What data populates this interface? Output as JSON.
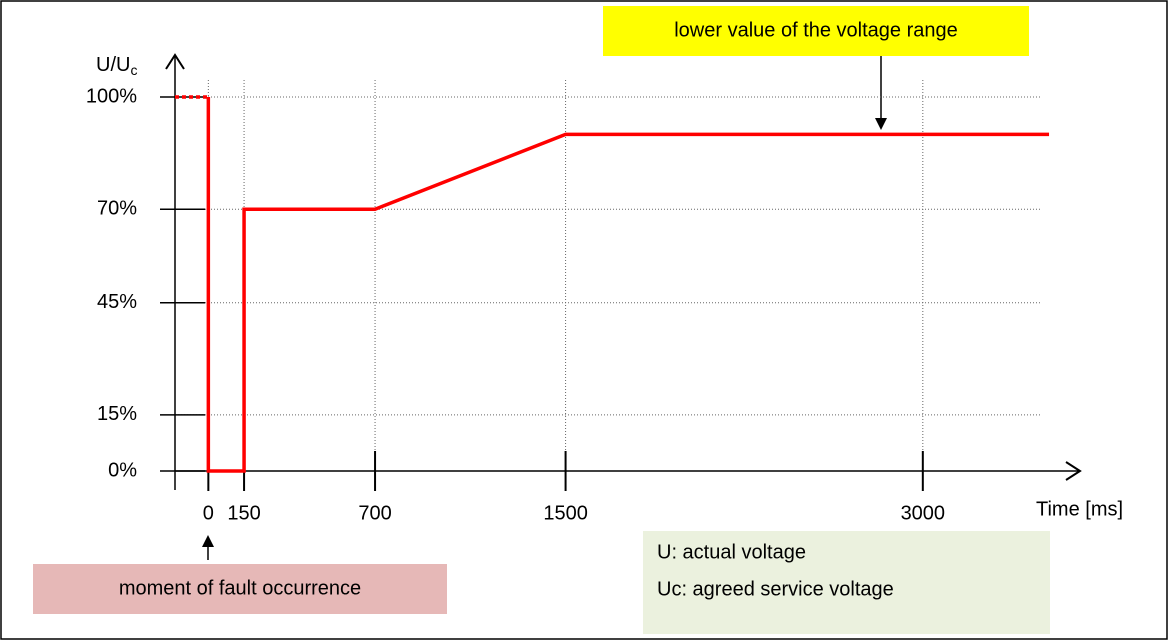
{
  "chart_data": {
    "type": "line",
    "y_label": "U/U",
    "y_label_sub": "c",
    "x_label": "Time [ms]",
    "xlim": [
      -140,
      3660
    ],
    "ylim": [
      0,
      100
    ],
    "xticks": [
      0,
      150,
      700,
      1500,
      3000
    ],
    "yticks": [
      {
        "value": 0,
        "label": "0%"
      },
      {
        "value": 15,
        "label": "15%"
      },
      {
        "value": 45,
        "label": "45%"
      },
      {
        "value": 70,
        "label": "70%"
      },
      {
        "value": 100,
        "label": "100%"
      }
    ],
    "grid": true,
    "series": [
      {
        "color": "#ff0000",
        "dashed": true,
        "x": [
          -140,
          0
        ],
        "values": [
          100,
          100
        ]
      },
      {
        "color": "#ff0000",
        "dashed": false,
        "x": [
          0,
          0,
          150,
          150,
          700,
          1500,
          3530
        ],
        "values": [
          100,
          0,
          0,
          70,
          70,
          90,
          90
        ]
      }
    ],
    "annotations": {
      "voltage_range": "lower value of the voltage range",
      "fault": "moment of fault occurrence",
      "legend": [
        "U: actual voltage",
        "Uc: agreed service voltage"
      ]
    }
  }
}
